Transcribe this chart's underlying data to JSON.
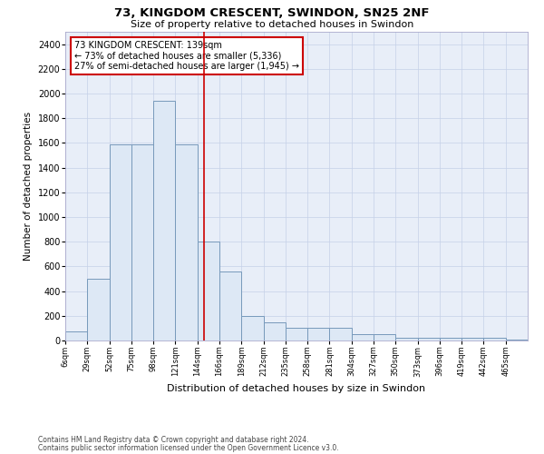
{
  "title": "73, KINGDOM CRESCENT, SWINDON, SN25 2NF",
  "subtitle": "Size of property relative to detached houses in Swindon",
  "xlabel": "Distribution of detached houses by size in Swindon",
  "ylabel": "Number of detached properties",
  "annotation_line1": "73 KINGDOM CRESCENT: 139sqm",
  "annotation_line2": "← 73% of detached houses are smaller (5,336)",
  "annotation_line3": "27% of semi-detached houses are larger (1,945) →",
  "property_size": 139,
  "bar_edge_color": "#7799bb",
  "bar_face_color": "#dde8f5",
  "vline_color": "#cc0000",
  "annotation_box_edge_color": "#cc0000",
  "background_color": "#e8eef8",
  "categories": [
    "6sqm",
    "29sqm",
    "52sqm",
    "75sqm",
    "98sqm",
    "121sqm",
    "144sqm",
    "166sqm",
    "189sqm",
    "212sqm",
    "235sqm",
    "258sqm",
    "281sqm",
    "304sqm",
    "327sqm",
    "350sqm",
    "373sqm",
    "396sqm",
    "419sqm",
    "442sqm",
    "465sqm"
  ],
  "bin_edges": [
    6,
    29,
    52,
    75,
    98,
    121,
    144,
    166,
    189,
    212,
    235,
    258,
    281,
    304,
    327,
    350,
    373,
    396,
    419,
    442,
    465,
    488
  ],
  "values": [
    75,
    500,
    1590,
    1590,
    1940,
    1590,
    800,
    560,
    200,
    150,
    100,
    100,
    100,
    50,
    50,
    20,
    20,
    20,
    20,
    20,
    10
  ],
  "ylim": [
    0,
    2500
  ],
  "yticks": [
    0,
    200,
    400,
    600,
    800,
    1000,
    1200,
    1400,
    1600,
    1800,
    2000,
    2200,
    2400
  ],
  "grid_color": "#c5d0e8",
  "footnote1": "Contains HM Land Registry data © Crown copyright and database right 2024.",
  "footnote2": "Contains public sector information licensed under the Open Government Licence v3.0."
}
